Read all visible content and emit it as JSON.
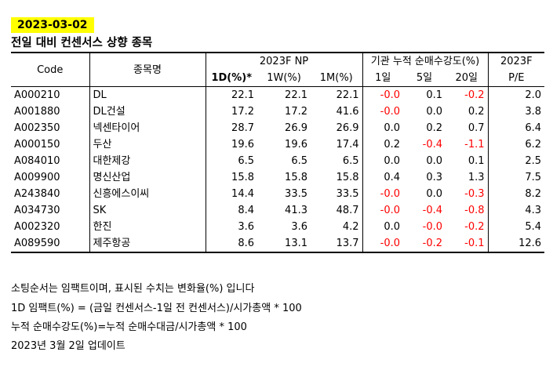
{
  "date": "2023-03-02",
  "title": "전일 대비 컨센서스 상향 종목",
  "header": {
    "code": "Code",
    "name": "종목명",
    "np_group": "2023F NP",
    "flow_group": "기관 누적 순매수강도(%)",
    "pe_line1": "2023F",
    "pe_line2": "P/E",
    "np_1d": "1D(%)*",
    "np_1w": "1W(%)",
    "np_1m": "1M(%)",
    "flow_1d": "1일",
    "flow_5d": "5일",
    "flow_20d": "20일"
  },
  "rows": [
    {
      "code": "A000210",
      "name": "DL",
      "d1": "22.1",
      "w1": "22.1",
      "m1": "22.1",
      "f1": "-0.0",
      "f5": "0.1",
      "f20": "-0.2",
      "pe": "2.0"
    },
    {
      "code": "A001880",
      "name": "DL건설",
      "d1": "17.2",
      "w1": "17.2",
      "m1": "41.6",
      "f1": "-0.0",
      "f5": "0.0",
      "f20": "0.2",
      "pe": "3.8"
    },
    {
      "code": "A002350",
      "name": "넥센타이어",
      "d1": "28.7",
      "w1": "26.9",
      "m1": "26.9",
      "f1": "0.0",
      "f5": "0.2",
      "f20": "0.7",
      "pe": "6.4"
    },
    {
      "code": "A000150",
      "name": "두산",
      "d1": "19.6",
      "w1": "19.6",
      "m1": "17.4",
      "f1": "0.2",
      "f5": "-0.4",
      "f20": "-1.1",
      "pe": "6.2"
    },
    {
      "code": "A084010",
      "name": "대한제강",
      "d1": "6.5",
      "w1": "6.5",
      "m1": "6.5",
      "f1": "0.0",
      "f5": "0.0",
      "f20": "0.1",
      "pe": "2.5"
    },
    {
      "code": "A009900",
      "name": "명신산업",
      "d1": "15.8",
      "w1": "15.8",
      "m1": "15.8",
      "f1": "0.4",
      "f5": "0.3",
      "f20": "1.3",
      "pe": "7.5"
    },
    {
      "code": "A243840",
      "name": "신흥에스이씨",
      "d1": "14.4",
      "w1": "33.5",
      "m1": "33.5",
      "f1": "-0.0",
      "f5": "0.0",
      "f20": "-0.3",
      "pe": "8.2"
    },
    {
      "code": "A034730",
      "name": "SK",
      "d1": "8.4",
      "w1": "41.3",
      "m1": "48.7",
      "f1": "-0.0",
      "f5": "-0.4",
      "f20": "-0.8",
      "pe": "4.3"
    },
    {
      "code": "A002320",
      "name": "한진",
      "d1": "3.6",
      "w1": "3.6",
      "m1": "4.2",
      "f1": "0.0",
      "f5": "-0.0",
      "f20": "-0.2",
      "pe": "5.4"
    },
    {
      "code": "A089590",
      "name": "제주항공",
      "d1": "8.6",
      "w1": "13.1",
      "m1": "13.7",
      "f1": "-0.0",
      "f5": "-0.2",
      "f20": "-0.1",
      "pe": "12.6"
    }
  ],
  "notes": [
    "소팅순서는 임팩트이며, 표시된 수치는 변화율(%) 입니다",
    "1D 임팩트(%) = (금일 컨센서스-1일 전 컨센서스)/시가총액 * 100",
    "누적 순매수강도(%)=누적 순매수대금/시가총액 * 100",
    "2023년 3월 2일 업데이트"
  ],
  "colors": {
    "negative": "#ff0000",
    "highlight": "#ffff00"
  }
}
